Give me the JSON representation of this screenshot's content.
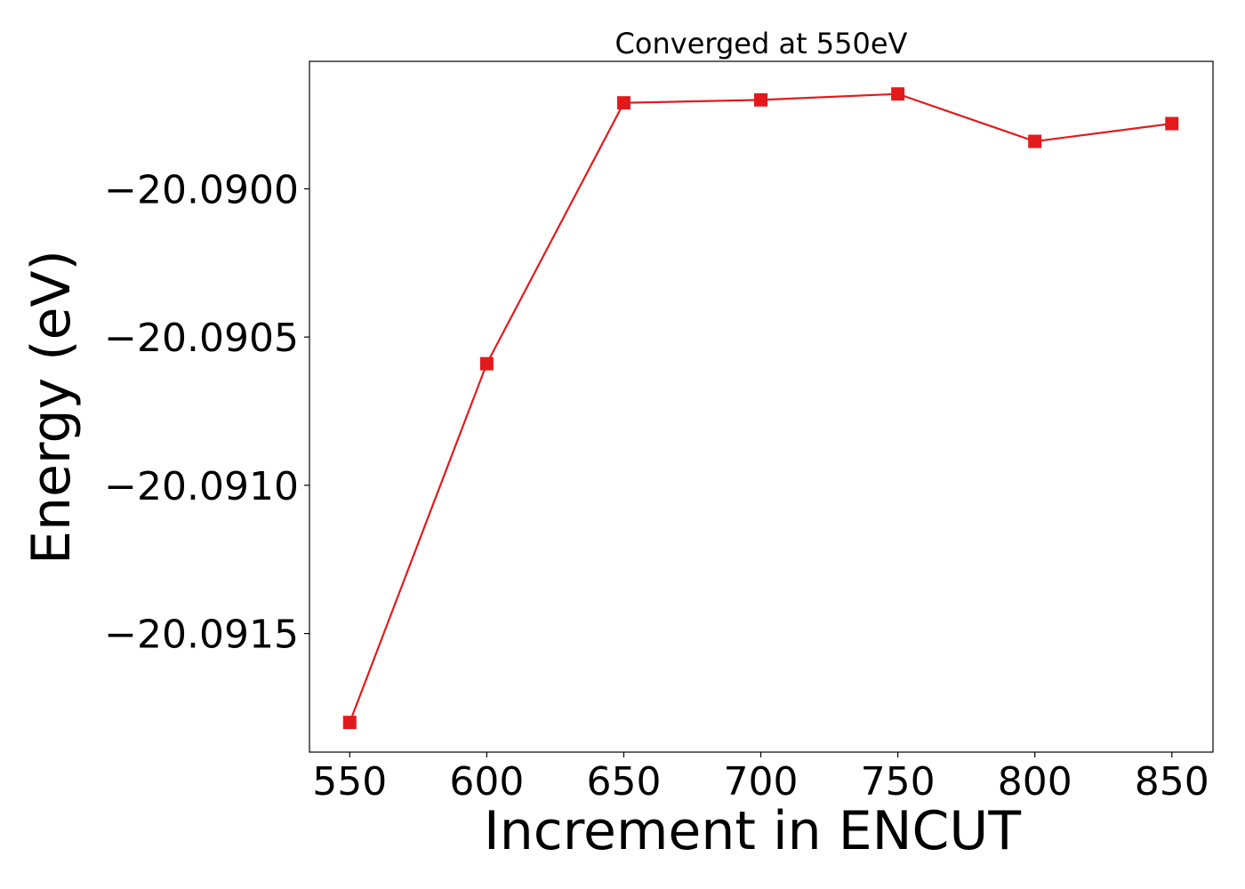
{
  "chart_data": {
    "type": "line",
    "title": "Converged at 550eV",
    "xlabel": "Increment in ENCUT",
    "ylabel": "Energy (eV)",
    "x": [
      550,
      600,
      650,
      700,
      750,
      800,
      850
    ],
    "series": [
      {
        "values": [
          -20.0918,
          -20.09059,
          -20.08971,
          -20.0897,
          -20.08968,
          -20.08984,
          -20.08978
        ],
        "color": "#e31a1c",
        "marker": "square"
      }
    ],
    "xlim": [
      535.3,
      865.0
    ],
    "ylim": [
      -20.0919,
      -20.08957
    ],
    "xticks": [
      550,
      600,
      650,
      700,
      750,
      800,
      850
    ],
    "xtick_labels": [
      "550",
      "600",
      "650",
      "700",
      "750",
      "800",
      "850"
    ],
    "yticks": [
      -20.0915,
      -20.091,
      -20.0905,
      -20.09
    ],
    "ytick_labels": [
      "−20.0915",
      "−20.0910",
      "−20.0905",
      "−20.0900"
    ],
    "grid": false,
    "legend": "none"
  }
}
